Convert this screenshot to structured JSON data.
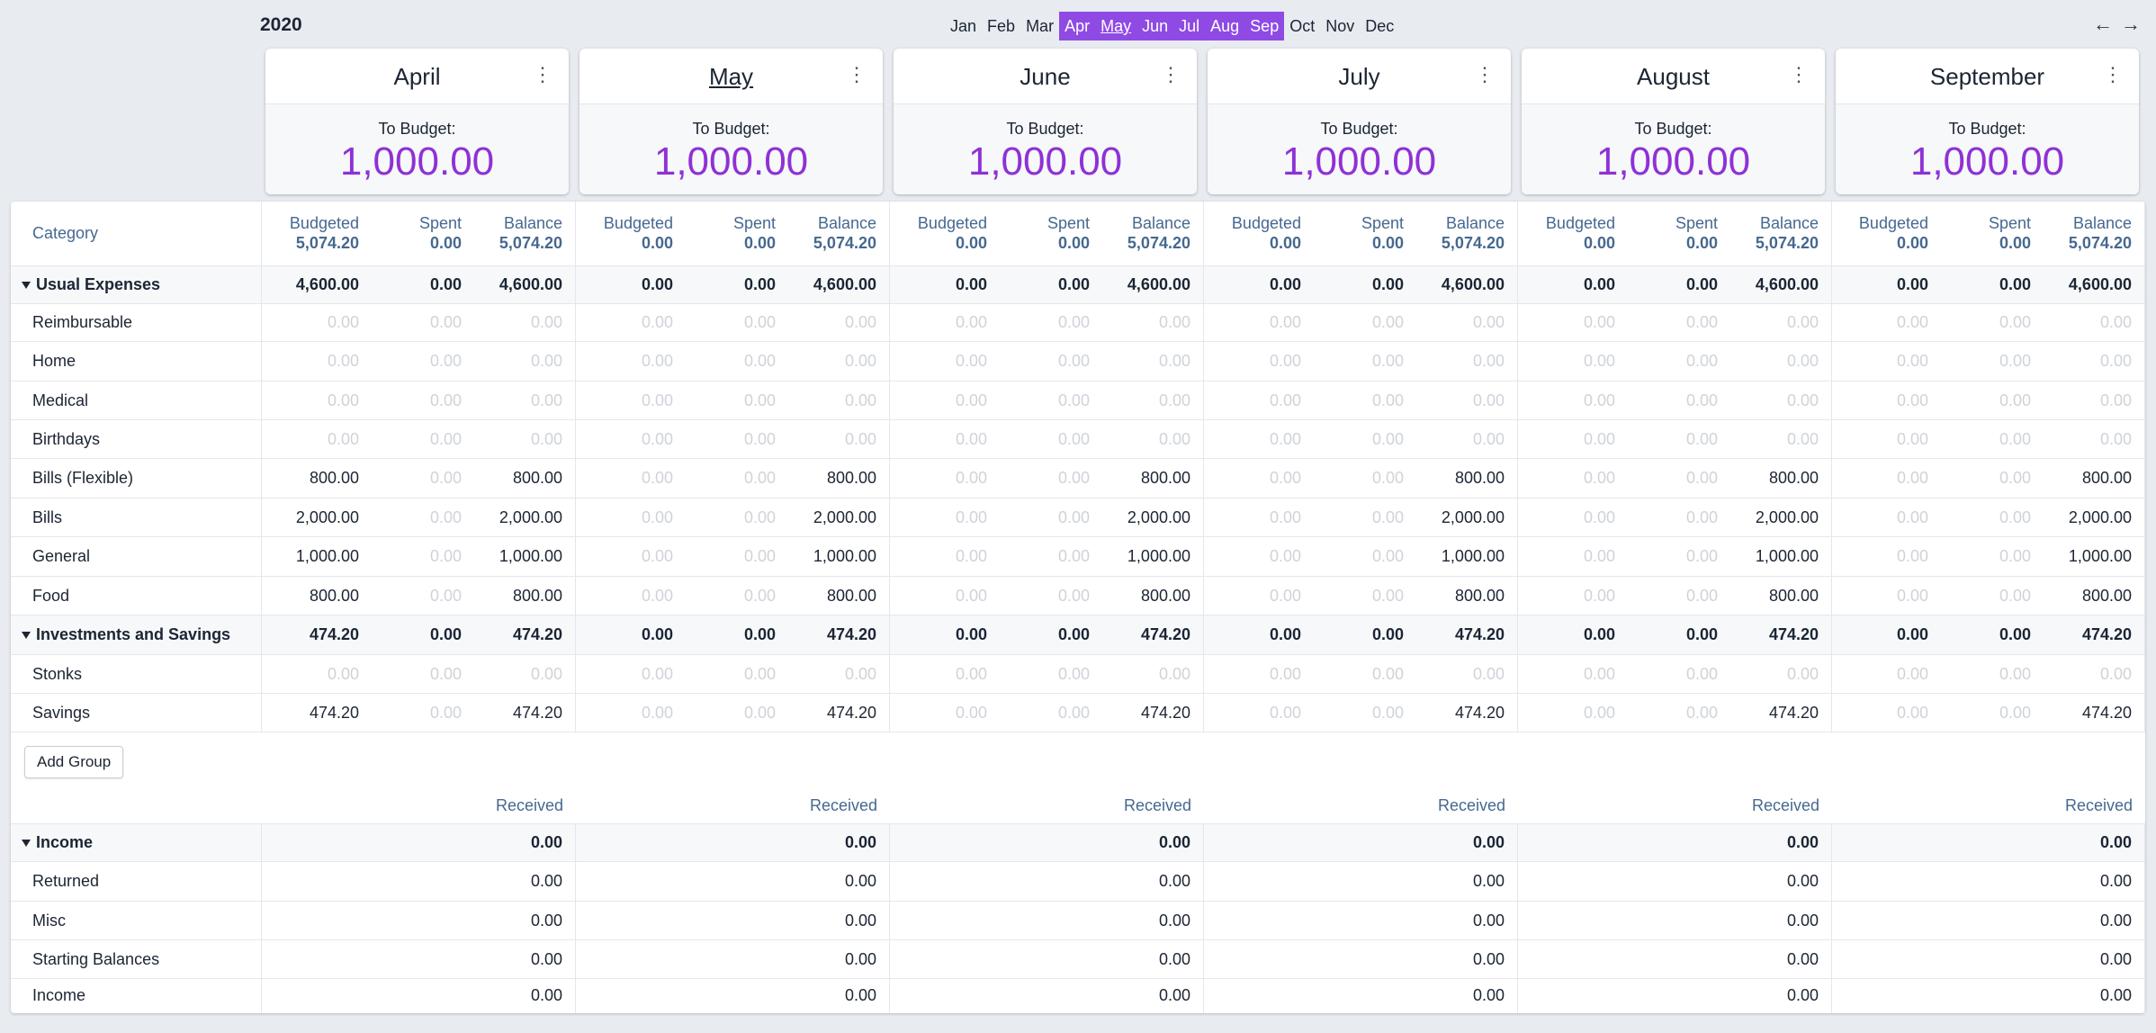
{
  "year": "2020",
  "month_picker": [
    {
      "label": "Jan",
      "selected": false,
      "current": false
    },
    {
      "label": "Feb",
      "selected": false,
      "current": false
    },
    {
      "label": "Mar",
      "selected": false,
      "current": false
    },
    {
      "label": "Apr",
      "selected": true,
      "current": false
    },
    {
      "label": "May",
      "selected": true,
      "current": true
    },
    {
      "label": "Jun",
      "selected": true,
      "current": false
    },
    {
      "label": "Jul",
      "selected": true,
      "current": false
    },
    {
      "label": "Aug",
      "selected": true,
      "current": false
    },
    {
      "label": "Sep",
      "selected": true,
      "current": false
    },
    {
      "label": "Oct",
      "selected": false,
      "current": false
    },
    {
      "label": "Nov",
      "selected": false,
      "current": false
    },
    {
      "label": "Dec",
      "selected": false,
      "current": false
    }
  ],
  "nav": {
    "prev": "←",
    "next": "→"
  },
  "accent_color": "#8f4ae4",
  "to_budget_label": "To Budget:",
  "months": [
    {
      "name": "April",
      "current": false,
      "to_budget": "1,000.00",
      "budgeted": "5,074.20",
      "spent": "0.00",
      "balance": "5,074.20"
    },
    {
      "name": "May",
      "current": true,
      "to_budget": "1,000.00",
      "budgeted": "0.00",
      "spent": "0.00",
      "balance": "5,074.20"
    },
    {
      "name": "June",
      "current": false,
      "to_budget": "1,000.00",
      "budgeted": "0.00",
      "spent": "0.00",
      "balance": "5,074.20"
    },
    {
      "name": "July",
      "current": false,
      "to_budget": "1,000.00",
      "budgeted": "0.00",
      "spent": "0.00",
      "balance": "5,074.20"
    },
    {
      "name": "August",
      "current": false,
      "to_budget": "1,000.00",
      "budgeted": "0.00",
      "spent": "0.00",
      "balance": "5,074.20"
    },
    {
      "name": "September",
      "current": false,
      "to_budget": "1,000.00",
      "budgeted": "0.00",
      "spent": "0.00",
      "balance": "5,074.20"
    }
  ],
  "column_labels": {
    "category": "Category",
    "budgeted": "Budgeted",
    "spent": "Spent",
    "balance": "Balance",
    "received": "Received"
  },
  "expense_rows": [
    {
      "type": "group",
      "name": "Usual Expenses",
      "cells": [
        [
          "4,600.00",
          "0.00",
          "4,600.00"
        ],
        [
          "0.00",
          "0.00",
          "4,600.00"
        ],
        [
          "0.00",
          "0.00",
          "4,600.00"
        ],
        [
          "0.00",
          "0.00",
          "4,600.00"
        ],
        [
          "0.00",
          "0.00",
          "4,600.00"
        ],
        [
          "0.00",
          "0.00",
          "4,600.00"
        ]
      ]
    },
    {
      "type": "cat",
      "name": "Reimbursable",
      "cells": [
        [
          "0.00",
          "0.00",
          "0.00"
        ],
        [
          "0.00",
          "0.00",
          "0.00"
        ],
        [
          "0.00",
          "0.00",
          "0.00"
        ],
        [
          "0.00",
          "0.00",
          "0.00"
        ],
        [
          "0.00",
          "0.00",
          "0.00"
        ],
        [
          "0.00",
          "0.00",
          "0.00"
        ]
      ]
    },
    {
      "type": "cat",
      "name": "Home",
      "cells": [
        [
          "0.00",
          "0.00",
          "0.00"
        ],
        [
          "0.00",
          "0.00",
          "0.00"
        ],
        [
          "0.00",
          "0.00",
          "0.00"
        ],
        [
          "0.00",
          "0.00",
          "0.00"
        ],
        [
          "0.00",
          "0.00",
          "0.00"
        ],
        [
          "0.00",
          "0.00",
          "0.00"
        ]
      ]
    },
    {
      "type": "cat",
      "name": "Medical",
      "cells": [
        [
          "0.00",
          "0.00",
          "0.00"
        ],
        [
          "0.00",
          "0.00",
          "0.00"
        ],
        [
          "0.00",
          "0.00",
          "0.00"
        ],
        [
          "0.00",
          "0.00",
          "0.00"
        ],
        [
          "0.00",
          "0.00",
          "0.00"
        ],
        [
          "0.00",
          "0.00",
          "0.00"
        ]
      ]
    },
    {
      "type": "cat",
      "name": "Birthdays",
      "cells": [
        [
          "0.00",
          "0.00",
          "0.00"
        ],
        [
          "0.00",
          "0.00",
          "0.00"
        ],
        [
          "0.00",
          "0.00",
          "0.00"
        ],
        [
          "0.00",
          "0.00",
          "0.00"
        ],
        [
          "0.00",
          "0.00",
          "0.00"
        ],
        [
          "0.00",
          "0.00",
          "0.00"
        ]
      ]
    },
    {
      "type": "cat",
      "name": "Bills (Flexible)",
      "cells": [
        [
          "800.00",
          "0.00",
          "800.00"
        ],
        [
          "0.00",
          "0.00",
          "800.00"
        ],
        [
          "0.00",
          "0.00",
          "800.00"
        ],
        [
          "0.00",
          "0.00",
          "800.00"
        ],
        [
          "0.00",
          "0.00",
          "800.00"
        ],
        [
          "0.00",
          "0.00",
          "800.00"
        ]
      ]
    },
    {
      "type": "cat",
      "name": "Bills",
      "cells": [
        [
          "2,000.00",
          "0.00",
          "2,000.00"
        ],
        [
          "0.00",
          "0.00",
          "2,000.00"
        ],
        [
          "0.00",
          "0.00",
          "2,000.00"
        ],
        [
          "0.00",
          "0.00",
          "2,000.00"
        ],
        [
          "0.00",
          "0.00",
          "2,000.00"
        ],
        [
          "0.00",
          "0.00",
          "2,000.00"
        ]
      ]
    },
    {
      "type": "cat",
      "name": "General",
      "cells": [
        [
          "1,000.00",
          "0.00",
          "1,000.00"
        ],
        [
          "0.00",
          "0.00",
          "1,000.00"
        ],
        [
          "0.00",
          "0.00",
          "1,000.00"
        ],
        [
          "0.00",
          "0.00",
          "1,000.00"
        ],
        [
          "0.00",
          "0.00",
          "1,000.00"
        ],
        [
          "0.00",
          "0.00",
          "1,000.00"
        ]
      ]
    },
    {
      "type": "cat",
      "name": "Food",
      "cells": [
        [
          "800.00",
          "0.00",
          "800.00"
        ],
        [
          "0.00",
          "0.00",
          "800.00"
        ],
        [
          "0.00",
          "0.00",
          "800.00"
        ],
        [
          "0.00",
          "0.00",
          "800.00"
        ],
        [
          "0.00",
          "0.00",
          "800.00"
        ],
        [
          "0.00",
          "0.00",
          "800.00"
        ]
      ]
    },
    {
      "type": "group",
      "name": "Investments and Savings",
      "cells": [
        [
          "474.20",
          "0.00",
          "474.20"
        ],
        [
          "0.00",
          "0.00",
          "474.20"
        ],
        [
          "0.00",
          "0.00",
          "474.20"
        ],
        [
          "0.00",
          "0.00",
          "474.20"
        ],
        [
          "0.00",
          "0.00",
          "474.20"
        ],
        [
          "0.00",
          "0.00",
          "474.20"
        ]
      ]
    },
    {
      "type": "cat",
      "name": "Stonks",
      "cells": [
        [
          "0.00",
          "0.00",
          "0.00"
        ],
        [
          "0.00",
          "0.00",
          "0.00"
        ],
        [
          "0.00",
          "0.00",
          "0.00"
        ],
        [
          "0.00",
          "0.00",
          "0.00"
        ],
        [
          "0.00",
          "0.00",
          "0.00"
        ],
        [
          "0.00",
          "0.00",
          "0.00"
        ]
      ]
    },
    {
      "type": "cat",
      "name": "Savings",
      "cells": [
        [
          "474.20",
          "0.00",
          "474.20"
        ],
        [
          "0.00",
          "0.00",
          "474.20"
        ],
        [
          "0.00",
          "0.00",
          "474.20"
        ],
        [
          "0.00",
          "0.00",
          "474.20"
        ],
        [
          "0.00",
          "0.00",
          "474.20"
        ],
        [
          "0.00",
          "0.00",
          "474.20"
        ]
      ]
    }
  ],
  "add_group_label": "Add Group",
  "income_rows": [
    {
      "type": "group",
      "name": "Income",
      "values": [
        "0.00",
        "0.00",
        "0.00",
        "0.00",
        "0.00",
        "0.00"
      ]
    },
    {
      "type": "cat",
      "name": "Returned",
      "values": [
        "0.00",
        "0.00",
        "0.00",
        "0.00",
        "0.00",
        "0.00"
      ]
    },
    {
      "type": "cat",
      "name": "Misc",
      "values": [
        "0.00",
        "0.00",
        "0.00",
        "0.00",
        "0.00",
        "0.00"
      ]
    },
    {
      "type": "cat",
      "name": "Starting Balances",
      "values": [
        "0.00",
        "0.00",
        "0.00",
        "0.00",
        "0.00",
        "0.00"
      ]
    },
    {
      "type": "cat",
      "name": "Income",
      "values": [
        "0.00",
        "0.00",
        "0.00",
        "0.00",
        "0.00",
        "0.00"
      ]
    }
  ]
}
